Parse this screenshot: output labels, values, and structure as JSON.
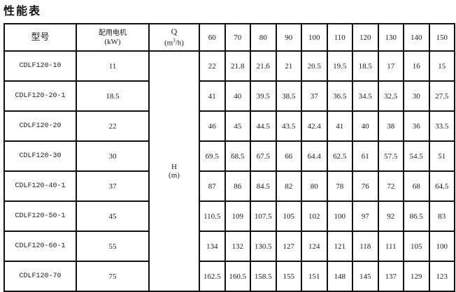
{
  "title": "性能表",
  "table": {
    "header": {
      "model": "型号",
      "motor_label": "配用电机",
      "motor_unit": "(kW)",
      "q_label": "Q",
      "q_unit_pre": "(m",
      "q_unit_sup": "3",
      "q_unit_post": "/h)",
      "h_label": "H",
      "h_unit": "(m)",
      "flows": [
        "60",
        "70",
        "80",
        "90",
        "100",
        "110",
        "120",
        "130",
        "140",
        "150"
      ]
    },
    "rows": [
      {
        "model": "CDLF120-10",
        "power": "11",
        "heads": [
          "22",
          "21.8",
          "21.6",
          "21",
          "20.5",
          "19.5",
          "18.5",
          "17",
          "16",
          "15"
        ]
      },
      {
        "model": "CDLF120-20-1",
        "power": "18.5",
        "heads": [
          "41",
          "40",
          "39.5",
          "38.5",
          "37",
          "36.5",
          "34.5",
          "32.5",
          "30",
          "27.5"
        ]
      },
      {
        "model": "CDLF120-20",
        "power": "22",
        "heads": [
          "46",
          "45",
          "44.5",
          "43.5",
          "42.4",
          "41",
          "40",
          "38",
          "36",
          "33.5"
        ]
      },
      {
        "model": "CDLF120-30",
        "power": "30",
        "heads": [
          "69.5",
          "68.5",
          "67.5",
          "66",
          "64.4",
          "62.5",
          "61",
          "57.5",
          "54.5",
          "51"
        ]
      },
      {
        "model": "CDLF120-40-1",
        "power": "37",
        "heads": [
          "87",
          "86",
          "84.5",
          "82",
          "80",
          "78",
          "76",
          "72",
          "68",
          "64.5"
        ]
      },
      {
        "model": "CDLF120-50-1",
        "power": "45",
        "heads": [
          "110.5",
          "109",
          "107.5",
          "105",
          "102",
          "100",
          "97",
          "92",
          "86.5",
          "83"
        ]
      },
      {
        "model": "CDLF120-60-1",
        "power": "55",
        "heads": [
          "134",
          "132",
          "130.5",
          "127",
          "124",
          "121",
          "118",
          "111",
          "105",
          "100"
        ]
      },
      {
        "model": "CDLF120-70",
        "power": "75",
        "heads": [
          "162.5",
          "160.5",
          "158.5",
          "155",
          "151",
          "148",
          "145",
          "137",
          "129",
          "123"
        ]
      }
    ]
  }
}
